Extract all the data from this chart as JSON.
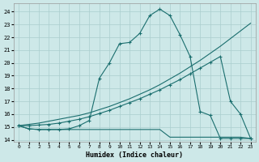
{
  "xlabel": "Humidex (Indice chaleur)",
  "bg_color": "#cde8e8",
  "grid_color": "#aacece",
  "line_color": "#1a6e6e",
  "xlim": [
    -0.5,
    23.5
  ],
  "ylim": [
    13.85,
    24.65
  ],
  "yticks": [
    14,
    15,
    16,
    17,
    18,
    19,
    20,
    21,
    22,
    23,
    24
  ],
  "xticks": [
    0,
    1,
    2,
    3,
    4,
    5,
    6,
    7,
    8,
    9,
    10,
    11,
    12,
    13,
    14,
    15,
    16,
    17,
    18,
    19,
    20,
    21,
    22,
    23
  ],
  "lines": [
    {
      "x": [
        0,
        1,
        2,
        3,
        4,
        5,
        6,
        7,
        8,
        9,
        10,
        11,
        12,
        13,
        14,
        15,
        16,
        17,
        18,
        19,
        20,
        21,
        22,
        23
      ],
      "y": [
        15.1,
        14.85,
        14.8,
        14.8,
        14.8,
        14.85,
        15.1,
        15.5,
        18.8,
        20.0,
        21.5,
        21.6,
        22.3,
        23.7,
        24.2,
        23.7,
        22.2,
        20.5,
        16.2,
        15.9,
        14.1,
        14.1,
        14.1,
        14.1
      ],
      "marker": true
    },
    {
      "x": [
        0,
        1,
        2,
        3,
        4,
        5,
        6,
        7,
        8,
        9,
        10,
        11,
        12,
        13,
        14,
        15,
        16,
        17,
        18,
        19,
        20,
        21,
        22,
        23
      ],
      "y": [
        15.1,
        15.2,
        15.3,
        15.45,
        15.6,
        15.75,
        15.9,
        16.1,
        16.35,
        16.6,
        16.9,
        17.2,
        17.55,
        17.9,
        18.3,
        18.75,
        19.2,
        19.7,
        20.2,
        20.75,
        21.3,
        21.9,
        22.5,
        23.1
      ],
      "marker": false
    },
    {
      "x": [
        0,
        1,
        2,
        3,
        4,
        5,
        6,
        7,
        8,
        9,
        10,
        11,
        12,
        13,
        14,
        15,
        16,
        17,
        18,
        19,
        20,
        21,
        22,
        23
      ],
      "y": [
        15.1,
        15.1,
        15.15,
        15.2,
        15.3,
        15.45,
        15.6,
        15.8,
        16.05,
        16.3,
        16.6,
        16.9,
        17.2,
        17.55,
        17.9,
        18.3,
        18.7,
        19.15,
        19.6,
        20.05,
        20.5,
        17.0,
        16.0,
        14.1
      ],
      "marker": true
    },
    {
      "x": [
        0,
        1,
        2,
        3,
        4,
        5,
        6,
        7,
        8,
        9,
        10,
        11,
        12,
        13,
        14,
        15,
        16,
        17,
        18,
        19,
        20,
        21,
        22,
        23
      ],
      "y": [
        15.1,
        14.85,
        14.8,
        14.8,
        14.8,
        14.8,
        14.8,
        14.8,
        14.8,
        14.8,
        14.8,
        14.8,
        14.8,
        14.8,
        14.8,
        14.2,
        14.2,
        14.2,
        14.2,
        14.2,
        14.2,
        14.2,
        14.2,
        14.1
      ],
      "marker": false
    }
  ]
}
